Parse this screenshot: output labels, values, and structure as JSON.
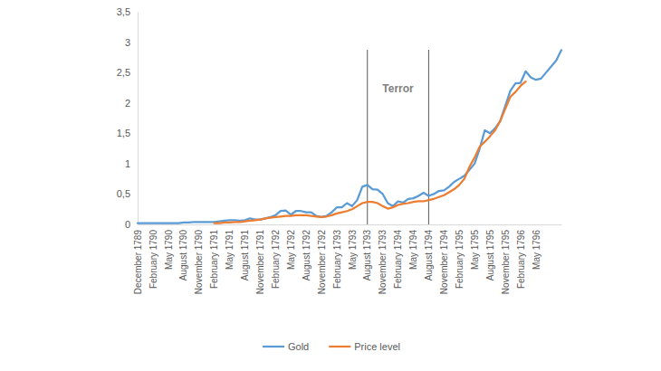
{
  "chart_data": {
    "type": "line",
    "categories": [
      "December 1789",
      null,
      null,
      "February 1790",
      null,
      null,
      "May 1790",
      null,
      null,
      "August 1790",
      null,
      null,
      "November 1790",
      null,
      null,
      "February 1791",
      null,
      null,
      "May 1791",
      null,
      null,
      "August 1791",
      null,
      null,
      "November 1791",
      null,
      null,
      "February 1792",
      null,
      null,
      "May 1792",
      null,
      null,
      "August 1792",
      null,
      null,
      "November 1792",
      null,
      null,
      "February 1793",
      null,
      null,
      "May 1793",
      null,
      null,
      "August 1793",
      null,
      null,
      "November 1793",
      null,
      null,
      "February 1794",
      null,
      null,
      "May 1794",
      null,
      null,
      "August 1794",
      null,
      null,
      "November 1794",
      null,
      null,
      "February 1795",
      null,
      null,
      "May 1795",
      null,
      null,
      "August 1795",
      null,
      null,
      "November 1795",
      null,
      null,
      "February 1796",
      null,
      null,
      "May 1796",
      null,
      null,
      null,
      null,
      null
    ],
    "series": [
      {
        "name": "Gold",
        "color": "#5b9bd5",
        "values": [
          0.02,
          0.02,
          0.02,
          0.02,
          0.02,
          0.02,
          0.02,
          0.02,
          0.02,
          0.03,
          0.03,
          0.04,
          0.04,
          0.04,
          0.04,
          0.04,
          0.05,
          0.06,
          0.07,
          0.07,
          0.06,
          0.07,
          0.1,
          0.08,
          0.08,
          0.1,
          0.12,
          0.15,
          0.22,
          0.23,
          0.16,
          0.22,
          0.22,
          0.2,
          0.2,
          0.14,
          0.12,
          0.14,
          0.2,
          0.28,
          0.28,
          0.35,
          0.3,
          0.4,
          0.62,
          0.65,
          0.58,
          0.57,
          0.5,
          0.35,
          0.3,
          0.38,
          0.36,
          0.42,
          0.43,
          0.47,
          0.52,
          0.47,
          0.5,
          0.55,
          0.56,
          0.62,
          0.7,
          0.75,
          0.8,
          0.9,
          1.0,
          1.25,
          1.55,
          1.5,
          1.58,
          1.7,
          1.95,
          2.2,
          2.32,
          2.33,
          2.52,
          2.42,
          2.38,
          2.4,
          2.5,
          2.6,
          2.7,
          2.87
        ]
      },
      {
        "name": "Price level",
        "color": "#ed7d31",
        "values": [
          null,
          null,
          null,
          null,
          null,
          null,
          null,
          null,
          null,
          null,
          null,
          null,
          null,
          null,
          null,
          0.02,
          0.02,
          0.03,
          0.03,
          0.04,
          0.04,
          0.05,
          0.06,
          0.07,
          0.08,
          0.1,
          0.11,
          0.12,
          0.13,
          0.14,
          0.14,
          0.15,
          0.15,
          0.15,
          0.14,
          0.13,
          0.12,
          0.13,
          0.15,
          0.18,
          0.2,
          0.22,
          0.25,
          0.3,
          0.35,
          0.37,
          0.37,
          0.35,
          0.3,
          0.26,
          0.28,
          0.32,
          0.34,
          0.35,
          0.37,
          0.38,
          0.38,
          0.4,
          0.42,
          0.45,
          0.48,
          0.53,
          0.58,
          0.65,
          0.75,
          0.95,
          1.1,
          1.28,
          1.36,
          1.45,
          1.55,
          1.7,
          1.9,
          2.1,
          2.18,
          2.28,
          2.35,
          null,
          null,
          null,
          null,
          null,
          null,
          null
        ]
      }
    ],
    "ylim": [
      0,
      3.5
    ],
    "yticks": [
      0,
      {
        "value": 0.5,
        "label": "0,5"
      },
      1,
      {
        "value": 1.5,
        "label": "1,5"
      },
      2,
      {
        "value": 2.5,
        "label": "2,5"
      },
      3,
      {
        "value": 3.5,
        "label": "3,5"
      }
    ],
    "annotations": [
      {
        "text": "Terror",
        "from": "August 1793",
        "to": "August 1794"
      }
    ],
    "legend": "bottom",
    "grid": false
  }
}
